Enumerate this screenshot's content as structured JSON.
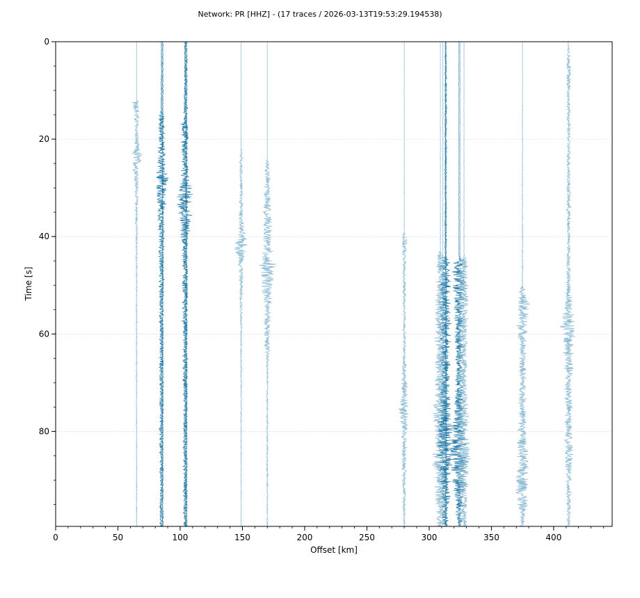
{
  "figure": {
    "title": "Network: PR [HHZ] - (17 traces / 2026-03-13T19:53:29.194538)"
  },
  "colors": {
    "trace_dark": "#1f77a4",
    "trace_light": "#7fb4cf",
    "grid": "#d9d9d9",
    "axis": "#000000"
  },
  "chart_data": {
    "type": "seismic_record_section",
    "title": "Network: PR [HHZ] - (17 traces / 2026-03-13T19:53:29.194538)",
    "xlabel": "Offset [km]",
    "ylabel": "Time [s]",
    "xlim": [
      0,
      447
    ],
    "ylim": [
      99.5,
      0
    ],
    "y_inverted": true,
    "x_ticks": [
      0,
      50,
      100,
      150,
      200,
      250,
      300,
      350,
      400
    ],
    "x_minor_step": 10,
    "y_ticks": [
      0,
      20,
      40,
      60,
      80
    ],
    "y_minor_step": 5,
    "grid": "horizontal, at major y ticks",
    "trace_count": 17,
    "traces": [
      {
        "offset_km": 65,
        "shade": "light",
        "onset_s": 12.5,
        "envelope": [
          [
            0,
            0.3
          ],
          [
            12,
            0.3
          ],
          [
            12.5,
            8
          ],
          [
            14,
            6
          ],
          [
            18,
            3
          ],
          [
            22,
            5
          ],
          [
            23,
            11
          ],
          [
            25,
            7
          ],
          [
            30,
            3
          ],
          [
            40,
            1.5
          ],
          [
            60,
            1
          ],
          [
            80,
            0.8
          ],
          [
            99,
            0.8
          ]
        ]
      },
      {
        "offset_km": 85,
        "shade": "dark",
        "onset_s": 15,
        "envelope": [
          [
            0,
            0.6
          ],
          [
            14,
            1
          ],
          [
            15,
            5
          ],
          [
            20,
            6
          ],
          [
            26,
            7
          ],
          [
            28,
            13
          ],
          [
            30,
            10
          ],
          [
            34,
            7
          ],
          [
            40,
            5
          ],
          [
            60,
            4
          ],
          [
            80,
            3.5
          ],
          [
            99,
            3
          ]
        ]
      },
      {
        "offset_km": 104,
        "shade": "dark",
        "onset_s": 17,
        "envelope": [
          [
            0,
            1.5
          ],
          [
            10,
            2
          ],
          [
            16,
            2.5
          ],
          [
            17,
            7
          ],
          [
            24,
            6
          ],
          [
            29,
            8
          ],
          [
            31,
            14
          ],
          [
            34,
            15
          ],
          [
            37,
            10
          ],
          [
            42,
            6
          ],
          [
            60,
            4.5
          ],
          [
            80,
            3.5
          ],
          [
            99,
            3
          ]
        ]
      },
      {
        "offset_km": 149,
        "shade": "light",
        "onset_s": 22.5,
        "envelope": [
          [
            0,
            0.3
          ],
          [
            22,
            0.4
          ],
          [
            22.5,
            3
          ],
          [
            30,
            2.5
          ],
          [
            38,
            4
          ],
          [
            40,
            8
          ],
          [
            42,
            12
          ],
          [
            45,
            5
          ],
          [
            50,
            3
          ],
          [
            60,
            1.5
          ],
          [
            80,
            1
          ],
          [
            99,
            0.6
          ]
        ]
      },
      {
        "offset_km": 170,
        "shade": "light",
        "onset_s": 24.5,
        "envelope": [
          [
            0,
            0.3
          ],
          [
            24,
            0.5
          ],
          [
            25,
            4
          ],
          [
            32,
            6
          ],
          [
            38,
            7
          ],
          [
            42,
            8
          ],
          [
            46,
            14
          ],
          [
            50,
            10
          ],
          [
            55,
            6
          ],
          [
            62,
            5
          ],
          [
            67,
            1.5
          ],
          [
            80,
            1.5
          ],
          [
            99,
            1
          ]
        ]
      },
      {
        "offset_km": 280,
        "shade": "light",
        "onset_s": 39,
        "envelope": [
          [
            0,
            0.3
          ],
          [
            39,
            0.5
          ],
          [
            40,
            5
          ],
          [
            45,
            3
          ],
          [
            55,
            2
          ],
          [
            65,
            3
          ],
          [
            72,
            6
          ],
          [
            76,
            10
          ],
          [
            80,
            5
          ],
          [
            85,
            4
          ],
          [
            92,
            3
          ],
          [
            99,
            2
          ]
        ]
      },
      {
        "offset_km": 309,
        "shade": "light",
        "onset_s": 43.5,
        "envelope": [
          [
            0,
            0.3
          ],
          [
            43,
            0.5
          ],
          [
            44,
            8
          ],
          [
            50,
            8
          ],
          [
            60,
            9
          ],
          [
            70,
            9
          ],
          [
            76,
            11
          ],
          [
            80,
            14
          ],
          [
            84,
            13
          ],
          [
            90,
            11
          ],
          [
            95,
            9
          ],
          [
            99,
            6
          ]
        ]
      },
      {
        "offset_km": 313,
        "shade": "dark",
        "onset_s": 44,
        "envelope": [
          [
            0,
            0.6
          ],
          [
            44,
            1
          ],
          [
            45,
            8
          ],
          [
            50,
            10
          ],
          [
            60,
            9
          ],
          [
            70,
            8
          ],
          [
            76,
            10
          ],
          [
            80,
            16
          ],
          [
            84,
            14
          ],
          [
            90,
            10
          ],
          [
            99,
            6
          ]
        ]
      },
      {
        "offset_km": 324,
        "shade": "dark",
        "onset_s": 44.5,
        "envelope": [
          [
            0,
            0.4
          ],
          [
            44,
            0.5
          ],
          [
            45,
            10
          ],
          [
            50,
            12
          ],
          [
            55,
            8
          ],
          [
            62,
            7
          ],
          [
            70,
            6
          ],
          [
            78,
            10
          ],
          [
            84,
            18
          ],
          [
            88,
            14
          ],
          [
            93,
            10
          ],
          [
            99,
            5
          ]
        ]
      },
      {
        "offset_km": 328,
        "shade": "light",
        "onset_s": 45,
        "envelope": [
          [
            0,
            0.3
          ],
          [
            44,
            0.5
          ],
          [
            45,
            7
          ],
          [
            50,
            9
          ],
          [
            60,
            6
          ],
          [
            70,
            6
          ],
          [
            80,
            9
          ],
          [
            86,
            12
          ],
          [
            92,
            8
          ],
          [
            99,
            4
          ]
        ]
      },
      {
        "offset_km": 375,
        "shade": "light",
        "onset_s": 50,
        "envelope": [
          [
            0,
            0.4
          ],
          [
            50,
            1
          ],
          [
            51,
            5
          ],
          [
            54,
            12
          ],
          [
            58,
            10
          ],
          [
            62,
            6
          ],
          [
            70,
            6
          ],
          [
            78,
            7
          ],
          [
            85,
            9
          ],
          [
            93,
            12
          ],
          [
            97,
            5
          ],
          [
            99,
            3
          ]
        ]
      },
      {
        "offset_km": 412,
        "shade": "light",
        "onset_s": 0.5,
        "envelope": [
          [
            0,
            1
          ],
          [
            3,
            3
          ],
          [
            7,
            6
          ],
          [
            10,
            3
          ],
          [
            20,
            3
          ],
          [
            30,
            3.5
          ],
          [
            35,
            4
          ],
          [
            40,
            3
          ],
          [
            50,
            4
          ],
          [
            54,
            8
          ],
          [
            58,
            14
          ],
          [
            62,
            10
          ],
          [
            70,
            7
          ],
          [
            80,
            6
          ],
          [
            85,
            7
          ],
          [
            90,
            5
          ],
          [
            99,
            3
          ]
        ]
      },
      {
        "offset_km": 86,
        "shade": "dark",
        "onset_s": 0,
        "envelope": [
          [
            0,
            1
          ],
          [
            15,
            1
          ],
          [
            99,
            1
          ]
        ]
      },
      {
        "offset_km": 105,
        "shade": "dark",
        "onset_s": 0,
        "envelope": [
          [
            0,
            1.5
          ],
          [
            17,
            2
          ],
          [
            99,
            1.5
          ]
        ]
      },
      {
        "offset_km": 311,
        "shade": "light",
        "onset_s": 0,
        "envelope": [
          [
            0,
            0.4
          ],
          [
            40,
            0.6
          ],
          [
            99,
            0.5
          ]
        ]
      },
      {
        "offset_km": 313.5,
        "shade": "dark",
        "onset_s": 0,
        "envelope": [
          [
            0,
            0.8
          ],
          [
            10,
            1.5
          ],
          [
            40,
            1.2
          ],
          [
            99,
            1
          ]
        ]
      },
      {
        "offset_km": 325,
        "shade": "light",
        "onset_s": 0,
        "envelope": [
          [
            0,
            0.3
          ],
          [
            44,
            0.4
          ],
          [
            99,
            0.4
          ]
        ]
      }
    ]
  }
}
